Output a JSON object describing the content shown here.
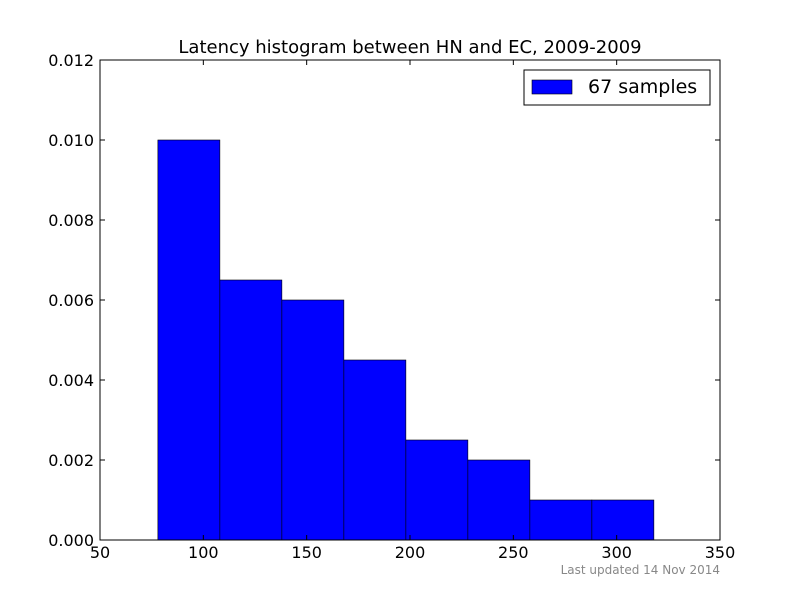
{
  "footer": {
    "text": "Last updated 14 Nov 2014"
  },
  "chart_data": {
    "type": "bar",
    "title": "Latency histogram between HN and EC, 2009-2009",
    "xlabel": "",
    "ylabel": "",
    "xlim": [
      50,
      350
    ],
    "ylim": [
      0,
      0.012
    ],
    "xticks": [
      50,
      100,
      150,
      200,
      250,
      300,
      350
    ],
    "yticks": [
      0,
      0.002,
      0.004,
      0.006,
      0.008,
      0.01,
      0.012
    ],
    "xtick_labels": [
      "50",
      "100",
      "150",
      "200",
      "250",
      "300",
      "350"
    ],
    "ytick_labels": [
      "0.000",
      "0.002",
      "0.004",
      "0.006",
      "0.008",
      "0.010",
      "0.012"
    ],
    "grid": false,
    "legend": {
      "placement": "top-right",
      "entries": [
        "67 samples"
      ]
    },
    "bar_color": "#0000ff",
    "bins": [
      {
        "x0": 78,
        "x1": 108,
        "value": 0.01
      },
      {
        "x0": 108,
        "x1": 138,
        "value": 0.0065
      },
      {
        "x0": 138,
        "x1": 168,
        "value": 0.006
      },
      {
        "x0": 168,
        "x1": 198,
        "value": 0.0045
      },
      {
        "x0": 198,
        "x1": 228,
        "value": 0.0025
      },
      {
        "x0": 228,
        "x1": 258,
        "value": 0.002
      },
      {
        "x0": 258,
        "x1": 288,
        "value": 0.001
      },
      {
        "x0": 288,
        "x1": 318,
        "value": 0.001
      }
    ]
  }
}
